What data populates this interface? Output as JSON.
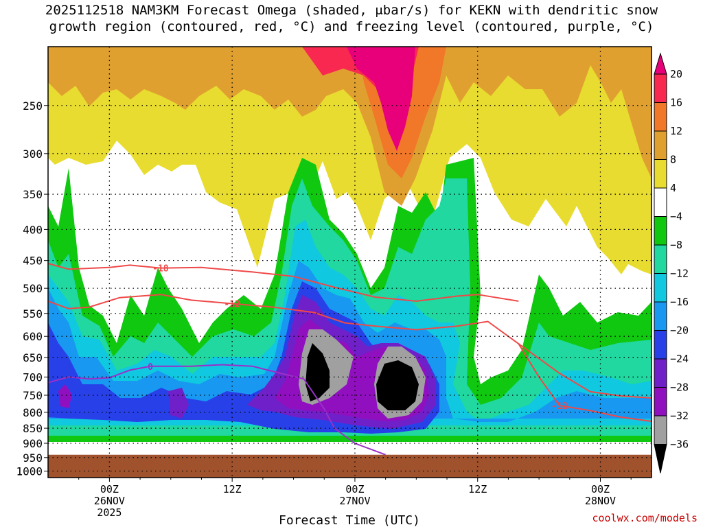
{
  "title": {
    "line1": "2025112518 NAM3KM Forecast Omega (shaded, μbar/s) for KEKN with dendritic snow",
    "line2": "growth region (contoured, red, °C) and freezing level (contoured, purple, °C)"
  },
  "credit": "coolwx.com/models",
  "chart_data": {
    "type": "heatmap",
    "title": "2025112518 NAM3KM Forecast Omega (shaded, μbar/s) for KEKN with dendritic snow growth region (contoured, red, °C) and freezing level (contoured, purple, °C)",
    "xlabel": "Forecast Time (UTC)",
    "ylabel": "",
    "x_range_hours": [
      -6,
      53
    ],
    "y_axis": {
      "ticks": [
        250,
        300,
        350,
        400,
        450,
        500,
        550,
        600,
        650,
        700,
        750,
        800,
        850,
        900,
        950,
        1000
      ],
      "range": [
        200,
        1025
      ]
    },
    "x_ticks": [
      {
        "hour": 0,
        "lines": [
          "00Z",
          "26NOV",
          "2025"
        ]
      },
      {
        "hour": 12,
        "lines": [
          "12Z"
        ]
      },
      {
        "hour": 24,
        "lines": [
          "00Z",
          "27NOV"
        ]
      },
      {
        "hour": 36,
        "lines": [
          "12Z"
        ]
      },
      {
        "hour": 48,
        "lines": [
          "00Z",
          "28NOV"
        ]
      }
    ],
    "colorbar": {
      "labels": [
        "20",
        "16",
        "12",
        "8",
        "4",
        "−4",
        "−8",
        "−12",
        "−16",
        "−20",
        "−24",
        "−28",
        "−32",
        "−36"
      ],
      "colors": [
        "#e8007a",
        "#f82850",
        "#f07828",
        "#e0a030",
        "#e8dc30",
        "#ffffff",
        "#10c810",
        "#20d8a0",
        "#10c8e0",
        "#1898f0",
        "#2840e8",
        "#7020c8",
        "#9010c0",
        "#a0a0a0",
        "#000000"
      ]
    },
    "surface_pressure": 940,
    "surface_color": "#a0522d",
    "contours": [
      {
        "label": "-18",
        "color": "#f04848",
        "points": [
          [
            -6,
            455
          ],
          [
            -4,
            465
          ],
          [
            0,
            462
          ],
          [
            2,
            458
          ],
          [
            5,
            463
          ],
          [
            9,
            462
          ],
          [
            14,
            470
          ],
          [
            18,
            478
          ],
          [
            22,
            498
          ],
          [
            26,
            517
          ],
          [
            30,
            525
          ],
          [
            34,
            515
          ],
          [
            36,
            512
          ],
          [
            40,
            525
          ]
        ]
      },
      {
        "label": "-12",
        "color": "#f04848",
        "points": [
          [
            -6,
            525
          ],
          [
            -4,
            540
          ],
          [
            -2,
            537
          ],
          [
            1,
            518
          ],
          [
            5,
            512
          ],
          [
            8,
            523
          ],
          [
            12,
            530
          ],
          [
            16,
            537
          ],
          [
            20,
            548
          ],
          [
            23,
            570
          ],
          [
            26,
            577
          ],
          [
            30,
            585
          ],
          [
            34,
            577
          ],
          [
            37,
            567
          ],
          [
            40,
            617
          ],
          [
            44,
            690
          ],
          [
            47,
            740
          ],
          [
            50,
            752
          ],
          [
            53,
            758
          ]
        ]
      },
      {
        "label": "-12",
        "color": "#f04848",
        "points": [
          [
            40,
            617
          ],
          [
            42,
            700
          ],
          [
            44,
            780
          ],
          [
            47,
            795
          ],
          [
            50,
            815
          ],
          [
            53,
            828
          ]
        ]
      },
      {
        "label": "0",
        "color": "#9a30c8",
        "points": [
          [
            -6,
            715
          ],
          [
            -4,
            700
          ],
          [
            -2,
            705
          ],
          [
            0,
            702
          ],
          [
            2,
            682
          ],
          [
            4,
            672
          ],
          [
            8,
            672
          ],
          [
            11,
            668
          ],
          [
            14,
            672
          ],
          [
            17,
            692
          ],
          [
            19,
            705
          ],
          [
            21,
            790
          ],
          [
            22,
            850
          ],
          [
            24,
            900
          ],
          [
            27,
            940
          ]
        ]
      }
    ]
  }
}
